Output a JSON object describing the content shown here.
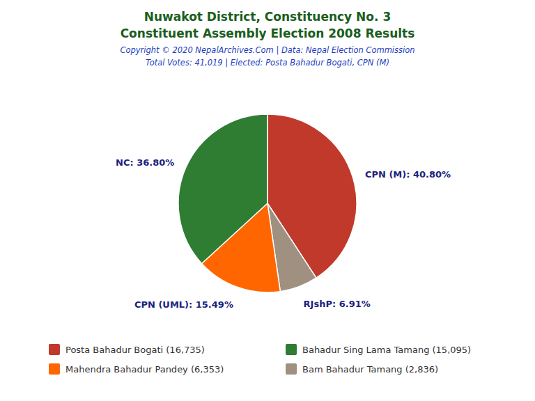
{
  "chart_data": {
    "type": "pie",
    "title": "Nuwakot District, Constituency No. 3\nConstituent Assembly Election 2008 Results",
    "subtitle": [
      "Copyright © 2020 NepalArchives.Com | Data: Nepal Election Commission",
      "Total Votes: 41,019 | Elected: Posta Bahadur Bogati, CPN (M)"
    ],
    "values": [
      40.8,
      6.91,
      15.49,
      36.8
    ],
    "value_labels": [
      "CPN (M): 40.80%",
      "RJshP: 6.91%",
      "CPN (UML): 15.49%",
      "NC: 36.80%"
    ],
    "colors": [
      "#C0392B",
      "#A09080",
      "#FF6600",
      "#2E7D32"
    ],
    "data_labels": true,
    "legend": "bottom",
    "annotations": [
      {
        "text": "Posta Bahadur Bogati (16,735)",
        "color": "#C0392B"
      },
      {
        "text": "Bahadur Sing Lama Tamang (15,095)",
        "color": "#2E7D32"
      },
      {
        "text": "Mahendra Bahadur Pandey (6,353)",
        "color": "#FF6600"
      },
      {
        "text": "Bam Bahadur Tamang (2,836)",
        "color": "#A09080"
      }
    ]
  }
}
